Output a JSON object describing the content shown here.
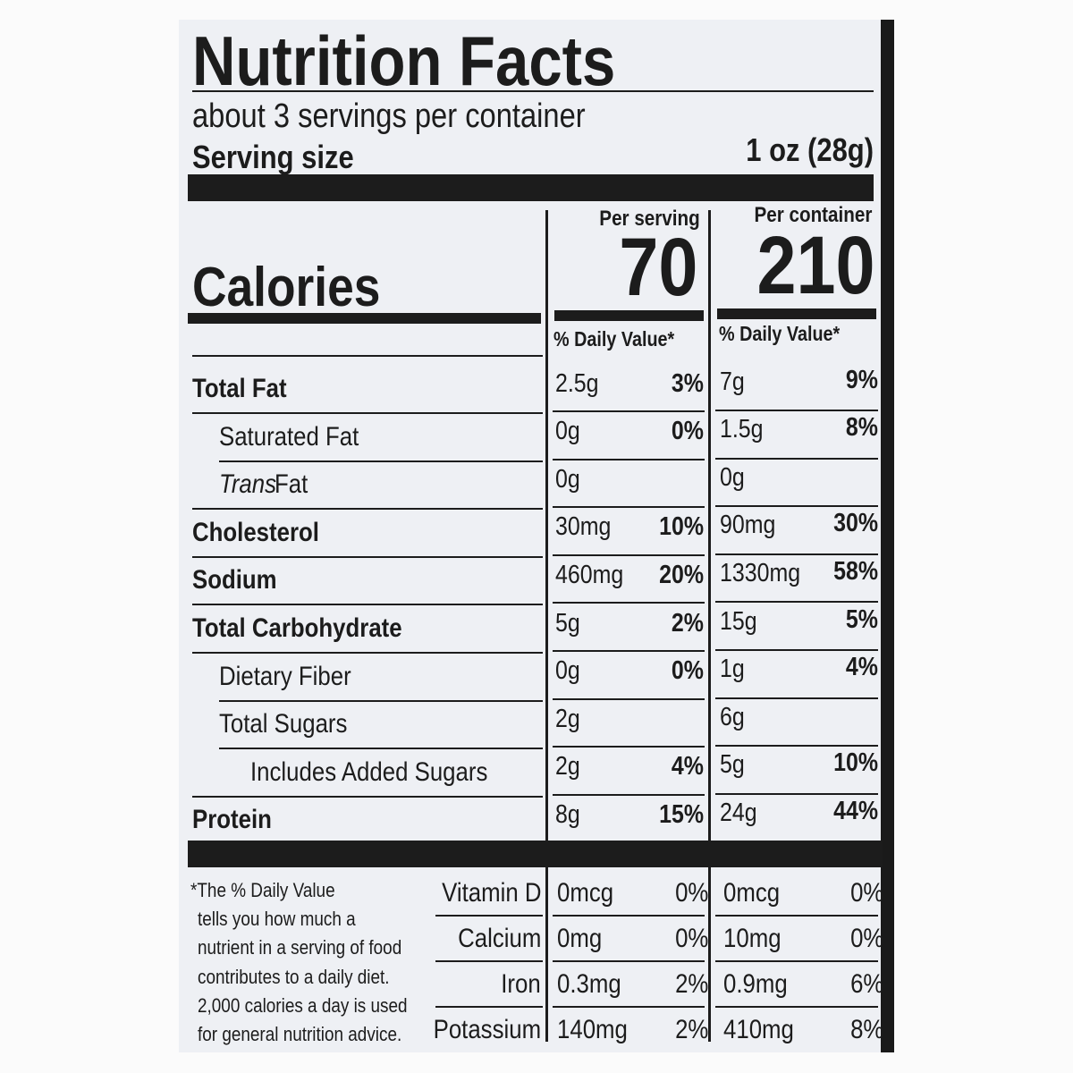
{
  "title": "Nutrition Facts",
  "servings": "about 3 servings per container",
  "serving_size": {
    "label": "Serving size",
    "value": "1 oz (28g)"
  },
  "columns": [
    "Per serving",
    "Per container"
  ],
  "calories": {
    "label": "Calories",
    "values": [
      70,
      210
    ]
  },
  "daily_value_header": [
    "% Daily Value*",
    "% Daily Value*"
  ],
  "nutrients": [
    {
      "name": "Total Fat",
      "bold": true,
      "level": 0,
      "per_serving": [
        "2.5g",
        "3%"
      ],
      "per_container": [
        "7g",
        "9%"
      ]
    },
    {
      "name": "Saturated Fat",
      "bold": false,
      "level": 1,
      "per_serving": [
        "0g",
        "0%"
      ],
      "per_container": [
        "1.5g",
        "8%"
      ]
    },
    {
      "name_italic": "Trans",
      "name": "Fat",
      "bold": false,
      "level": 1,
      "per_serving": [
        "0g",
        null
      ],
      "per_container": [
        "0g",
        null
      ]
    },
    {
      "name": "Cholesterol",
      "bold": true,
      "level": 0,
      "per_serving": [
        "30mg",
        "10%"
      ],
      "per_container": [
        "90mg",
        "30%"
      ]
    },
    {
      "name": "Sodium",
      "bold": true,
      "level": 0,
      "per_serving": [
        "460mg",
        "20%"
      ],
      "per_container": [
        "1330mg",
        "58%"
      ]
    },
    {
      "name": "Total Carbohydrate",
      "bold": true,
      "level": 0,
      "per_serving": [
        "5g",
        "2%"
      ],
      "per_container": [
        "15g",
        "5%"
      ]
    },
    {
      "name": "Dietary Fiber",
      "bold": false,
      "level": 1,
      "per_serving": [
        "0g",
        "0%"
      ],
      "per_container": [
        "1g",
        "4%"
      ]
    },
    {
      "name": "Total Sugars",
      "bold": false,
      "level": 1,
      "per_serving": [
        "2g",
        null
      ],
      "per_container": [
        "6g",
        null
      ]
    },
    {
      "name": "Includes Added Sugars",
      "bold": false,
      "level": 2,
      "per_serving": [
        "2g",
        "4%"
      ],
      "per_container": [
        "5g",
        "10%"
      ]
    },
    {
      "name": "Protein",
      "bold": true,
      "level": 0,
      "per_serving": [
        "8g",
        "15%"
      ],
      "per_container": [
        "24g",
        "44%"
      ]
    }
  ],
  "vitamins": [
    {
      "name": "Vitamin D",
      "per_serving": [
        "0mcg",
        "0%"
      ],
      "per_container": [
        "0mcg",
        "0%"
      ]
    },
    {
      "name": "Calcium",
      "per_serving": [
        "0mg",
        "0%"
      ],
      "per_container": [
        "10mg",
        "0%"
      ]
    },
    {
      "name": "Iron",
      "per_serving": [
        "0.3mg",
        "2%"
      ],
      "per_container": [
        "0.9mg",
        "6%"
      ]
    },
    {
      "name": "Potassium",
      "per_serving": [
        "140mg",
        "2%"
      ],
      "per_container": [
        "410mg",
        "8%"
      ]
    }
  ],
  "footnote": [
    "*The % Daily Value",
    "tells you how much a",
    "nutrient in a serving of food",
    "contributes to a daily diet.",
    "2,000 calories a day is used",
    "for general nutrition advice."
  ]
}
